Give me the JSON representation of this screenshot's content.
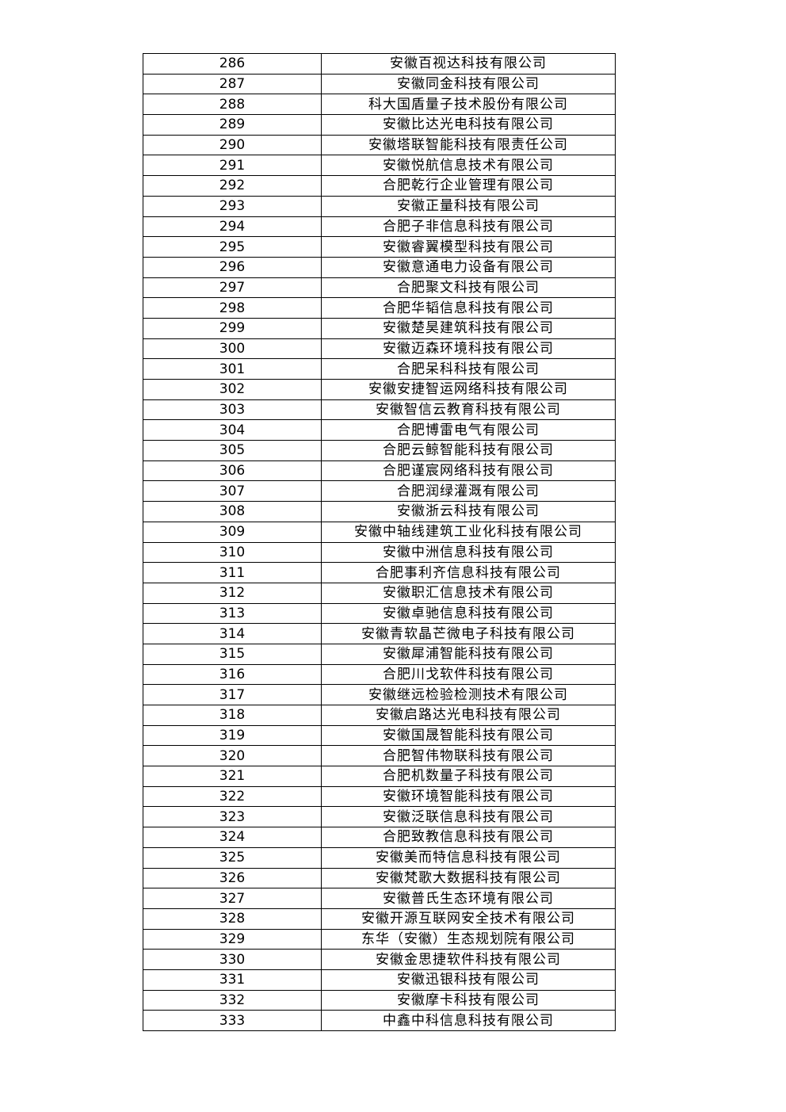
{
  "rows": [
    {
      "no": "286",
      "name": "安徽百视达科技有限公司"
    },
    {
      "no": "287",
      "name": "安徽同金科技有限公司"
    },
    {
      "no": "288",
      "name": "科大国盾量子技术股份有限公司"
    },
    {
      "no": "289",
      "name": "安徽比达光电科技有限公司"
    },
    {
      "no": "290",
      "name": "安徽塔联智能科技有限责任公司"
    },
    {
      "no": "291",
      "name": "安徽悦航信息技术有限公司"
    },
    {
      "no": "292",
      "name": "合肥乾行企业管理有限公司"
    },
    {
      "no": "293",
      "name": "安徽正量科技有限公司"
    },
    {
      "no": "294",
      "name": "合肥子非信息科技有限公司"
    },
    {
      "no": "295",
      "name": "安徽睿翼模型科技有限公司"
    },
    {
      "no": "296",
      "name": "安徽意通电力设备有限公司"
    },
    {
      "no": "297",
      "name": "合肥聚文科技有限公司"
    },
    {
      "no": "298",
      "name": "合肥华韬信息科技有限公司"
    },
    {
      "no": "299",
      "name": "安徽楚昊建筑科技有限公司"
    },
    {
      "no": "300",
      "name": "安徽迈森环境科技有限公司"
    },
    {
      "no": "301",
      "name": "合肥呆科科技有限公司"
    },
    {
      "no": "302",
      "name": "安徽安捷智运网络科技有限公司"
    },
    {
      "no": "303",
      "name": "安徽智信云教育科技有限公司"
    },
    {
      "no": "304",
      "name": "合肥博雷电气有限公司"
    },
    {
      "no": "305",
      "name": "合肥云鲸智能科技有限公司"
    },
    {
      "no": "306",
      "name": "合肥谨宸网络科技有限公司"
    },
    {
      "no": "307",
      "name": "合肥润绿灌溉有限公司"
    },
    {
      "no": "308",
      "name": "安徽浙云科技有限公司"
    },
    {
      "no": "309",
      "name": "安徽中轴线建筑工业化科技有限公司"
    },
    {
      "no": "310",
      "name": "安徽中洲信息科技有限公司"
    },
    {
      "no": "311",
      "name": "合肥事利齐信息科技有限公司"
    },
    {
      "no": "312",
      "name": "安徽职汇信息技术有限公司"
    },
    {
      "no": "313",
      "name": "安徽卓驰信息科技有限公司"
    },
    {
      "no": "314",
      "name": "安徽青软晶芒微电子科技有限公司"
    },
    {
      "no": "315",
      "name": "安徽犀浦智能科技有限公司"
    },
    {
      "no": "316",
      "name": "合肥川戈软件科技有限公司"
    },
    {
      "no": "317",
      "name": "安徽继远检验检测技术有限公司"
    },
    {
      "no": "318",
      "name": "安徽启路达光电科技有限公司"
    },
    {
      "no": "319",
      "name": "安徽国晟智能科技有限公司"
    },
    {
      "no": "320",
      "name": "合肥智伟物联科技有限公司"
    },
    {
      "no": "321",
      "name": "合肥机数量子科技有限公司"
    },
    {
      "no": "322",
      "name": "安徽环境智能科技有限公司"
    },
    {
      "no": "323",
      "name": "安徽泛联信息科技有限公司"
    },
    {
      "no": "324",
      "name": "合肥致教信息科技有限公司"
    },
    {
      "no": "325",
      "name": "安徽美而特信息科技有限公司"
    },
    {
      "no": "326",
      "name": "安徽梵歌大数据科技有限公司"
    },
    {
      "no": "327",
      "name": "安徽普氏生态环境有限公司"
    },
    {
      "no": "328",
      "name": "安徽开源互联网安全技术有限公司"
    },
    {
      "no": "329",
      "name": "东华（安徽）生态规划院有限公司"
    },
    {
      "no": "330",
      "name": "安徽金思捷软件科技有限公司"
    },
    {
      "no": "331",
      "name": "安徽迅银科技有限公司"
    },
    {
      "no": "332",
      "name": "安徽摩卡科技有限公司"
    },
    {
      "no": "333",
      "name": "中鑫中科信息科技有限公司"
    }
  ]
}
